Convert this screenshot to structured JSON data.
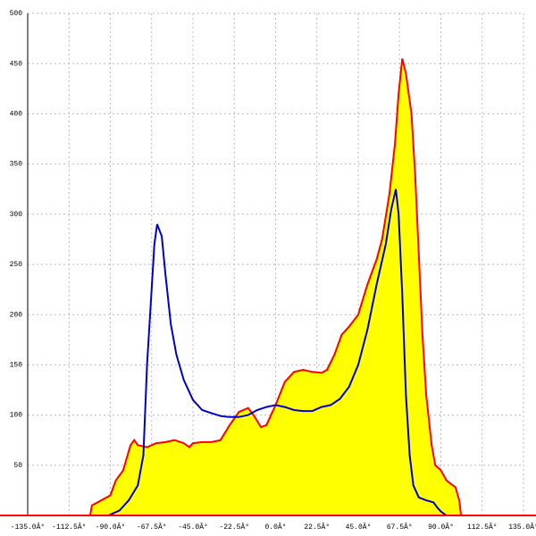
{
  "chart_data": {
    "type": "line",
    "xlim": [
      -135,
      135
    ],
    "ylim": [
      0,
      500
    ],
    "xticks": [
      {
        "value": -135,
        "label": "-135.0Â°"
      },
      {
        "value": -112.5,
        "label": "-112.5Â°"
      },
      {
        "value": -90,
        "label": "-90.0Â°"
      },
      {
        "value": -67.5,
        "label": "-67.5Â°"
      },
      {
        "value": -45,
        "label": "-45.0Â°"
      },
      {
        "value": -22.5,
        "label": "-22.5Â°"
      },
      {
        "value": 0,
        "label": "0.0Â°"
      },
      {
        "value": 22.5,
        "label": "22.5Â°"
      },
      {
        "value": 45,
        "label": "45.0Â°"
      },
      {
        "value": 67.5,
        "label": "67.5Â°"
      },
      {
        "value": 90,
        "label": "90.0Â°"
      },
      {
        "value": 112.5,
        "label": "112.5Â°"
      },
      {
        "value": 135,
        "label": "135.0Â°"
      }
    ],
    "yticks": [
      50,
      100,
      150,
      200,
      250,
      300,
      350,
      400,
      450,
      500
    ],
    "grid": true,
    "series": [
      {
        "color": "#ff0000",
        "fill": "#ffff00",
        "x": [
          -101,
          -100,
          -95,
          -90,
          -87,
          -83,
          -79,
          -77,
          -75,
          -70,
          -65,
          -60,
          -55,
          -50,
          -47,
          -45,
          -40,
          -35,
          -30,
          -25,
          -20,
          -15,
          -12,
          -8,
          -5,
          0,
          5,
          10,
          15,
          20,
          25,
          28,
          32,
          36,
          40,
          45,
          50,
          55,
          58,
          62,
          65,
          67,
          69,
          71,
          74,
          76,
          78,
          80,
          82,
          85,
          87,
          90,
          93,
          95,
          98,
          100,
          101
        ],
        "values": [
          0,
          10,
          15,
          20,
          35,
          45,
          70,
          75,
          70,
          68,
          72,
          73,
          75,
          72,
          68,
          72,
          73,
          73,
          75,
          90,
          103,
          107,
          100,
          88,
          90,
          110,
          133,
          143,
          145,
          143,
          142,
          145,
          160,
          180,
          188,
          200,
          230,
          255,
          275,
          320,
          370,
          420,
          455,
          440,
          400,
          340,
          260,
          180,
          120,
          70,
          50,
          45,
          35,
          32,
          28,
          15,
          0
        ]
      },
      {
        "color": "#0000cc",
        "x": [
          -91,
          -85,
          -80,
          -75,
          -72,
          -70,
          -68,
          -66,
          -64.5,
          -62,
          -60,
          -57,
          -54,
          -50,
          -45,
          -40,
          -35,
          -30,
          -25,
          -20,
          -15,
          -10,
          -5,
          0,
          5,
          10,
          15,
          20,
          25,
          30,
          35,
          40,
          45,
          50,
          55,
          60,
          63,
          65.5,
          67,
          69,
          71,
          73,
          75,
          78,
          82,
          86,
          88,
          90,
          93
        ],
        "values": [
          0,
          5,
          15,
          30,
          60,
          150,
          210,
          270,
          290,
          278,
          240,
          190,
          160,
          135,
          115,
          105,
          102,
          99,
          98,
          98,
          100,
          105,
          108,
          110,
          108,
          105,
          104,
          104,
          108,
          110,
          116,
          128,
          150,
          185,
          230,
          270,
          305,
          325,
          300,
          220,
          120,
          60,
          30,
          18,
          15,
          13,
          8,
          4,
          0
        ]
      }
    ]
  }
}
